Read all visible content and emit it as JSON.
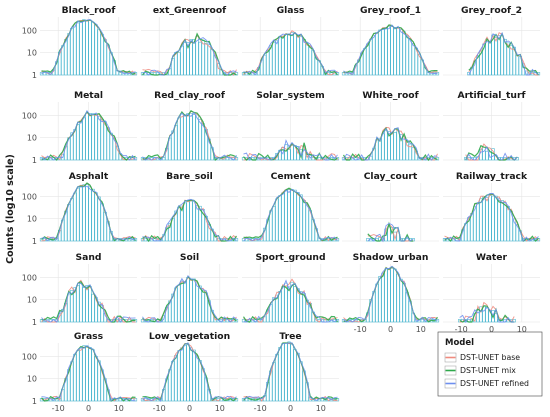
{
  "chart_data": {
    "type": "bar",
    "ylabel": "Counts (log10 scale)",
    "x_ticks": [
      -10,
      0,
      10
    ],
    "y_ticks": [
      1,
      10,
      100
    ],
    "y_scale": "log10",
    "x_range": [
      -16,
      16
    ],
    "y_range": [
      1,
      400
    ],
    "legend": {
      "title": "Model",
      "placement": "bottom-right",
      "entries": [
        {
          "name": "DST-UNET base",
          "color": "#f08a7e"
        },
        {
          "name": "DST-UNET mix",
          "color": "#2ea84a"
        },
        {
          "name": "DST-UNET refined",
          "color": "#6e8ff0"
        }
      ]
    },
    "bar_color": "#4fb8d0",
    "panels": [
      {
        "title": "Black_roof",
        "peak": 300,
        "center": -1,
        "spread": 6.5,
        "xmin": -16,
        "xmax": 16,
        "noise": 0.1
      },
      {
        "title": "ext_Greenroof",
        "peak": 45,
        "center": 2,
        "spread": 7,
        "xmin": -16,
        "xmax": 16,
        "noise": 0.3
      },
      {
        "title": "Glass",
        "peak": 70,
        "center": 0,
        "spread": 8,
        "xmin": -16,
        "xmax": 16,
        "noise": 0.15
      },
      {
        "title": "Grey_roof_1",
        "peak": 150,
        "center": 0,
        "spread": 8,
        "xmin": -16,
        "xmax": 16,
        "noise": 0.1
      },
      {
        "title": "Grey_roof_2",
        "peak": 55,
        "center": 2,
        "spread": 7,
        "xmin": -8,
        "xmax": 16,
        "noise": 0.25
      },
      {
        "title": "Metal",
        "peak": 120,
        "center": 1,
        "spread": 6.5,
        "xmin": -16,
        "xmax": 16,
        "noise": 0.2
      },
      {
        "title": "Red_clay_roof",
        "peak": 150,
        "center": 0,
        "spread": 5.5,
        "xmin": -16,
        "xmax": 16,
        "noise": 0.2
      },
      {
        "title": "Solar_system",
        "peak": 4,
        "center": 1,
        "spread": 9,
        "xmin": -16,
        "xmax": 16,
        "noise": 0.45
      },
      {
        "title": "White_roof",
        "peak": 22,
        "center": 1,
        "spread": 7,
        "xmin": -16,
        "xmax": 16,
        "noise": 0.35
      },
      {
        "title": "Artificial_turf",
        "peak": 3,
        "center": -1,
        "spread": 6,
        "xmin": -9,
        "xmax": 9,
        "noise": 0.5
      },
      {
        "title": "Asphalt",
        "peak": 330,
        "center": -1,
        "spread": 5.5,
        "xmin": -16,
        "xmax": 16,
        "noise": 0.1
      },
      {
        "title": "Bare_soil",
        "peak": 55,
        "center": 0,
        "spread": 6.5,
        "xmin": -16,
        "xmax": 16,
        "noise": 0.25
      },
      {
        "title": "Cement",
        "peak": 220,
        "center": 0,
        "spread": 6,
        "xmin": -16,
        "xmax": 16,
        "noise": 0.12
      },
      {
        "title": "Clay_court",
        "peak": 3,
        "center": 0,
        "spread": 5,
        "xmin": -8,
        "xmax": 8,
        "noise": 0.5
      },
      {
        "title": "Railway_track",
        "peak": 110,
        "center": 0,
        "spread": 7,
        "xmin": -16,
        "xmax": 16,
        "noise": 0.2
      },
      {
        "title": "Sand",
        "peak": 45,
        "center": -2,
        "spread": 6,
        "xmin": -16,
        "xmax": 16,
        "noise": 0.3
      },
      {
        "title": "Soil",
        "peak": 90,
        "center": 0,
        "spread": 6,
        "xmin": -16,
        "xmax": 16,
        "noise": 0.2
      },
      {
        "title": "Sport_ground",
        "peak": 50,
        "center": 0,
        "spread": 6.5,
        "xmin": -16,
        "xmax": 16,
        "noise": 0.25
      },
      {
        "title": "Shadow_urban",
        "peak": 260,
        "center": 0,
        "spread": 5,
        "xmin": -16,
        "xmax": 16,
        "noise": 0.15
      },
      {
        "title": "Water",
        "peak": 4,
        "center": -2,
        "spread": 6,
        "xmin": -11,
        "xmax": 8,
        "noise": 0.45
      },
      {
        "title": "Grass",
        "peak": 300,
        "center": -1,
        "spread": 5,
        "xmin": -16,
        "xmax": 16,
        "noise": 0.12
      },
      {
        "title": "Low_vegetation",
        "peak": 320,
        "center": -1,
        "spread": 5,
        "xmin": -16,
        "xmax": 16,
        "noise": 0.12
      },
      {
        "title": "Tree",
        "peak": 420,
        "center": -1,
        "spread": 4.5,
        "xmin": -16,
        "xmax": 16,
        "noise": 0.12
      }
    ]
  }
}
